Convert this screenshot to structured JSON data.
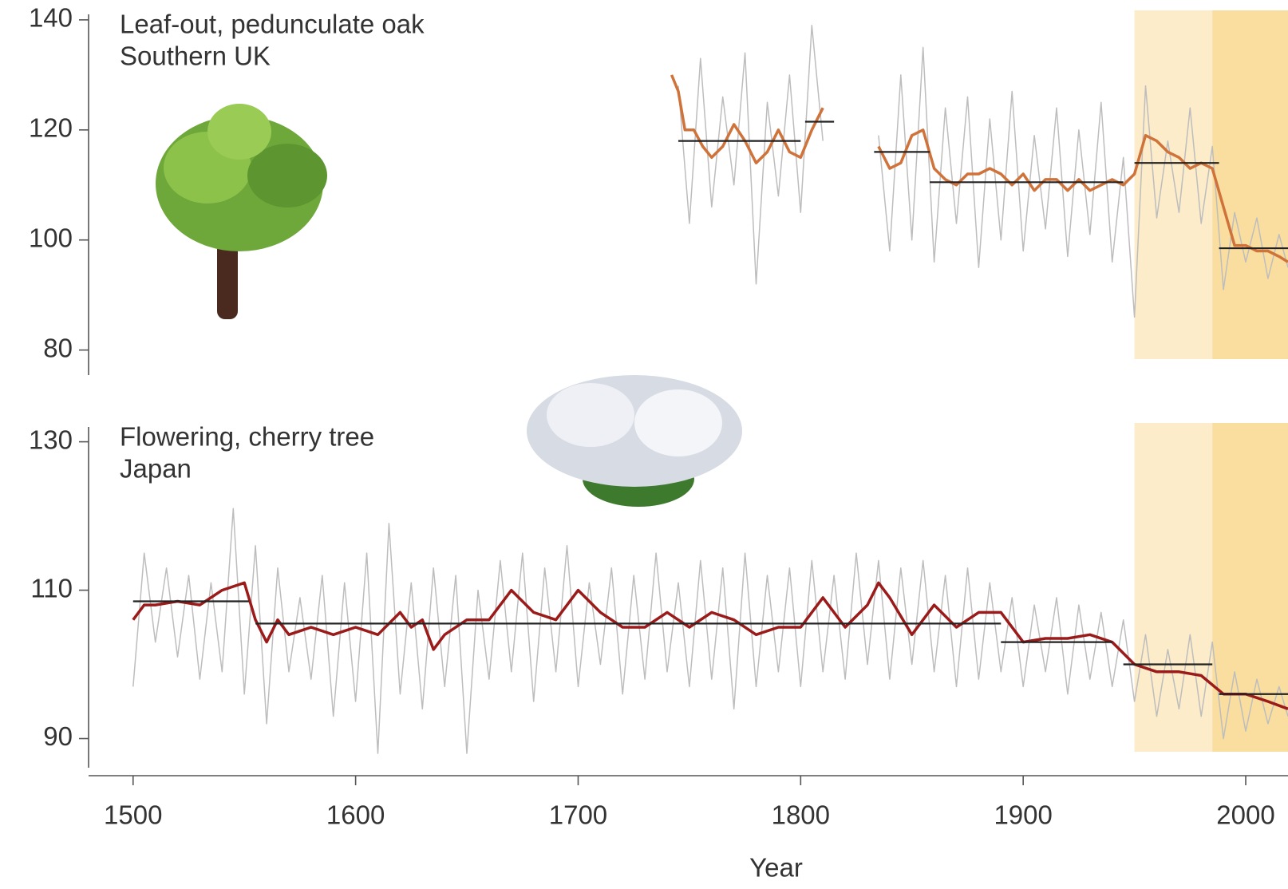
{
  "chart_data": [
    {
      "type": "line",
      "annotations": [
        "Leaf-out, pedunculate oak",
        "Southern UK"
      ],
      "xlim": [
        1480,
        2019
      ],
      "ylim": [
        74,
        141
      ],
      "yticks": [
        80,
        100,
        120,
        140
      ],
      "shaded_regions": [
        {
          "xlim": [
            1950,
            1985
          ],
          "color": "#fcecc9"
        },
        {
          "xlim": [
            1985,
            2019
          ],
          "color": "#f9dea0"
        }
      ],
      "series": [
        {
          "color": "#bdbdbd",
          "width": 1.5,
          "x": [
            1745,
            1750,
            1755,
            1760,
            1765,
            1770,
            1775,
            1780,
            1785,
            1790,
            1795,
            1800,
            1805,
            1810,
            1820,
            1835,
            1840,
            1845,
            1850,
            1855,
            1860,
            1865,
            1870,
            1875,
            1880,
            1885,
            1890,
            1895,
            1900,
            1905,
            1910,
            1915,
            1920,
            1925,
            1930,
            1935,
            1940,
            1945,
            1950,
            1955,
            1960,
            1965,
            1970,
            1975,
            1980,
            1985,
            1990,
            1995,
            2000,
            2005,
            2010,
            2015,
            2019
          ],
          "values": [
            128,
            103,
            133,
            106,
            126,
            110,
            134,
            92,
            125,
            108,
            130,
            105,
            139,
            118,
            null,
            119,
            98,
            130,
            100,
            135,
            96,
            124,
            103,
            126,
            95,
            122,
            100,
            127,
            98,
            119,
            102,
            124,
            97,
            120,
            101,
            125,
            96,
            115,
            86,
            128,
            104,
            118,
            105,
            124,
            103,
            117,
            91,
            105,
            96,
            104,
            93,
            101,
            95
          ]
        },
        {
          "color": "#d0733a",
          "width": 3.5,
          "x": [
            1742,
            1745,
            1748,
            1752,
            1756,
            1760,
            1765,
            1770,
            1775,
            1780,
            1785,
            1790,
            1795,
            1800,
            1805,
            1810,
            1820,
            1835,
            1840,
            1845,
            1850,
            1855,
            1860,
            1865,
            1870,
            1875,
            1880,
            1885,
            1890,
            1895,
            1900,
            1905,
            1910,
            1915,
            1920,
            1925,
            1930,
            1935,
            1940,
            1945,
            1950,
            1955,
            1960,
            1965,
            1970,
            1975,
            1980,
            1985,
            1990,
            1995,
            2000,
            2005,
            2010,
            2015,
            2019
          ],
          "values": [
            130,
            127,
            120,
            120,
            117,
            115,
            117,
            121,
            118,
            114,
            116,
            120,
            116,
            115,
            120,
            124,
            null,
            117,
            113,
            114,
            119,
            120,
            113,
            111,
            110,
            112,
            112,
            113,
            112,
            110,
            112,
            109,
            111,
            111,
            109,
            111,
            109,
            110,
            111,
            110,
            112,
            119,
            118,
            116,
            115,
            113,
            114,
            113,
            106,
            99,
            99,
            98,
            98,
            97,
            96
          ]
        }
      ],
      "mean_segments": [
        {
          "x": [
            1745,
            1800
          ],
          "y": 118
        },
        {
          "x": [
            1802,
            1815
          ],
          "y": 121.5
        },
        {
          "x": [
            1833,
            1858
          ],
          "y": 116
        },
        {
          "x": [
            1858,
            1945
          ],
          "y": 110.5
        },
        {
          "x": [
            1950,
            1988
          ],
          "y": 114
        },
        {
          "x": [
            1988,
            2019
          ],
          "y": 98.5
        }
      ]
    },
    {
      "type": "line",
      "annotations": [
        "Flowering, cherry tree",
        "Japan"
      ],
      "xlim": [
        1480,
        2019
      ],
      "ylim": [
        85,
        132
      ],
      "yticks": [
        90,
        110,
        130
      ],
      "xticks": [
        1500,
        1600,
        1700,
        1800,
        1900,
        2000
      ],
      "x_label": "Year",
      "shaded_regions": [
        {
          "xlim": [
            1950,
            1985
          ],
          "color": "#fcecc9"
        },
        {
          "xlim": [
            1985,
            2019
          ],
          "color": "#f9dea0"
        }
      ],
      "series": [
        {
          "color": "#bdbdbd",
          "width": 1.5,
          "x": [
            1500,
            1505,
            1510,
            1515,
            1520,
            1525,
            1530,
            1535,
            1540,
            1545,
            1550,
            1555,
            1560,
            1565,
            1570,
            1575,
            1580,
            1585,
            1590,
            1595,
            1600,
            1605,
            1610,
            1615,
            1620,
            1625,
            1630,
            1635,
            1640,
            1645,
            1650,
            1655,
            1660,
            1665,
            1670,
            1675,
            1680,
            1685,
            1690,
            1695,
            1700,
            1705,
            1710,
            1715,
            1720,
            1725,
            1730,
            1735,
            1740,
            1745,
            1750,
            1755,
            1760,
            1765,
            1770,
            1775,
            1780,
            1785,
            1790,
            1795,
            1800,
            1805,
            1810,
            1815,
            1820,
            1825,
            1830,
            1835,
            1840,
            1845,
            1850,
            1855,
            1860,
            1865,
            1870,
            1875,
            1880,
            1885,
            1890,
            1895,
            1900,
            1905,
            1910,
            1915,
            1920,
            1925,
            1930,
            1935,
            1940,
            1945,
            1950,
            1955,
            1960,
            1965,
            1970,
            1975,
            1980,
            1985,
            1990,
            1995,
            2000,
            2005,
            2010,
            2015,
            2019
          ],
          "values": [
            97,
            115,
            103,
            113,
            101,
            112,
            98,
            111,
            99,
            121,
            96,
            116,
            92,
            113,
            99,
            109,
            98,
            112,
            93,
            111,
            95,
            115,
            88,
            119,
            96,
            111,
            94,
            113,
            97,
            112,
            88,
            110,
            98,
            114,
            99,
            115,
            95,
            113,
            99,
            116,
            97,
            111,
            100,
            113,
            96,
            112,
            98,
            115,
            99,
            111,
            97,
            114,
            98,
            113,
            94,
            115,
            97,
            112,
            99,
            113,
            97,
            114,
            99,
            112,
            98,
            115,
            100,
            114,
            98,
            113,
            100,
            114,
            99,
            112,
            97,
            113,
            98,
            111,
            99,
            109,
            97,
            108,
            99,
            109,
            96,
            108,
            98,
            107,
            97,
            106,
            95,
            104,
            93,
            102,
            94,
            104,
            93,
            103,
            90,
            99,
            91,
            98,
            92,
            97,
            93
          ]
        },
        {
          "color": "#9b1a1a",
          "width": 3.5,
          "x": [
            1500,
            1505,
            1510,
            1520,
            1530,
            1540,
            1550,
            1555,
            1560,
            1565,
            1570,
            1580,
            1590,
            1600,
            1610,
            1620,
            1625,
            1630,
            1635,
            1640,
            1650,
            1660,
            1670,
            1680,
            1690,
            1700,
            1710,
            1720,
            1730,
            1740,
            1750,
            1760,
            1770,
            1780,
            1790,
            1800,
            1810,
            1820,
            1830,
            1835,
            1840,
            1850,
            1860,
            1870,
            1880,
            1890,
            1900,
            1910,
            1920,
            1930,
            1940,
            1950,
            1960,
            1970,
            1980,
            1990,
            2000,
            2010,
            2019
          ],
          "values": [
            106,
            108,
            108,
            108.5,
            108,
            110,
            111,
            106,
            103,
            106,
            104,
            105,
            104,
            105,
            104,
            107,
            105,
            106,
            102,
            104,
            106,
            106,
            110,
            107,
            106,
            110,
            107,
            105,
            105,
            107,
            105,
            107,
            106,
            104,
            105,
            105,
            109,
            105,
            108,
            111,
            109,
            104,
            108,
            105,
            107,
            107,
            103,
            103.5,
            103.5,
            104,
            103,
            100,
            99,
            99,
            98.5,
            96,
            96,
            95,
            94
          ]
        }
      ],
      "mean_segments": [
        {
          "x": [
            1500,
            1552
          ],
          "y": 108.5
        },
        {
          "x": [
            1555,
            1890
          ],
          "y": 105.5
        },
        {
          "x": [
            1890,
            1940
          ],
          "y": 103
        },
        {
          "x": [
            1945,
            1985
          ],
          "y": 100
        },
        {
          "x": [
            1988,
            2019
          ],
          "y": 96
        }
      ]
    }
  ]
}
